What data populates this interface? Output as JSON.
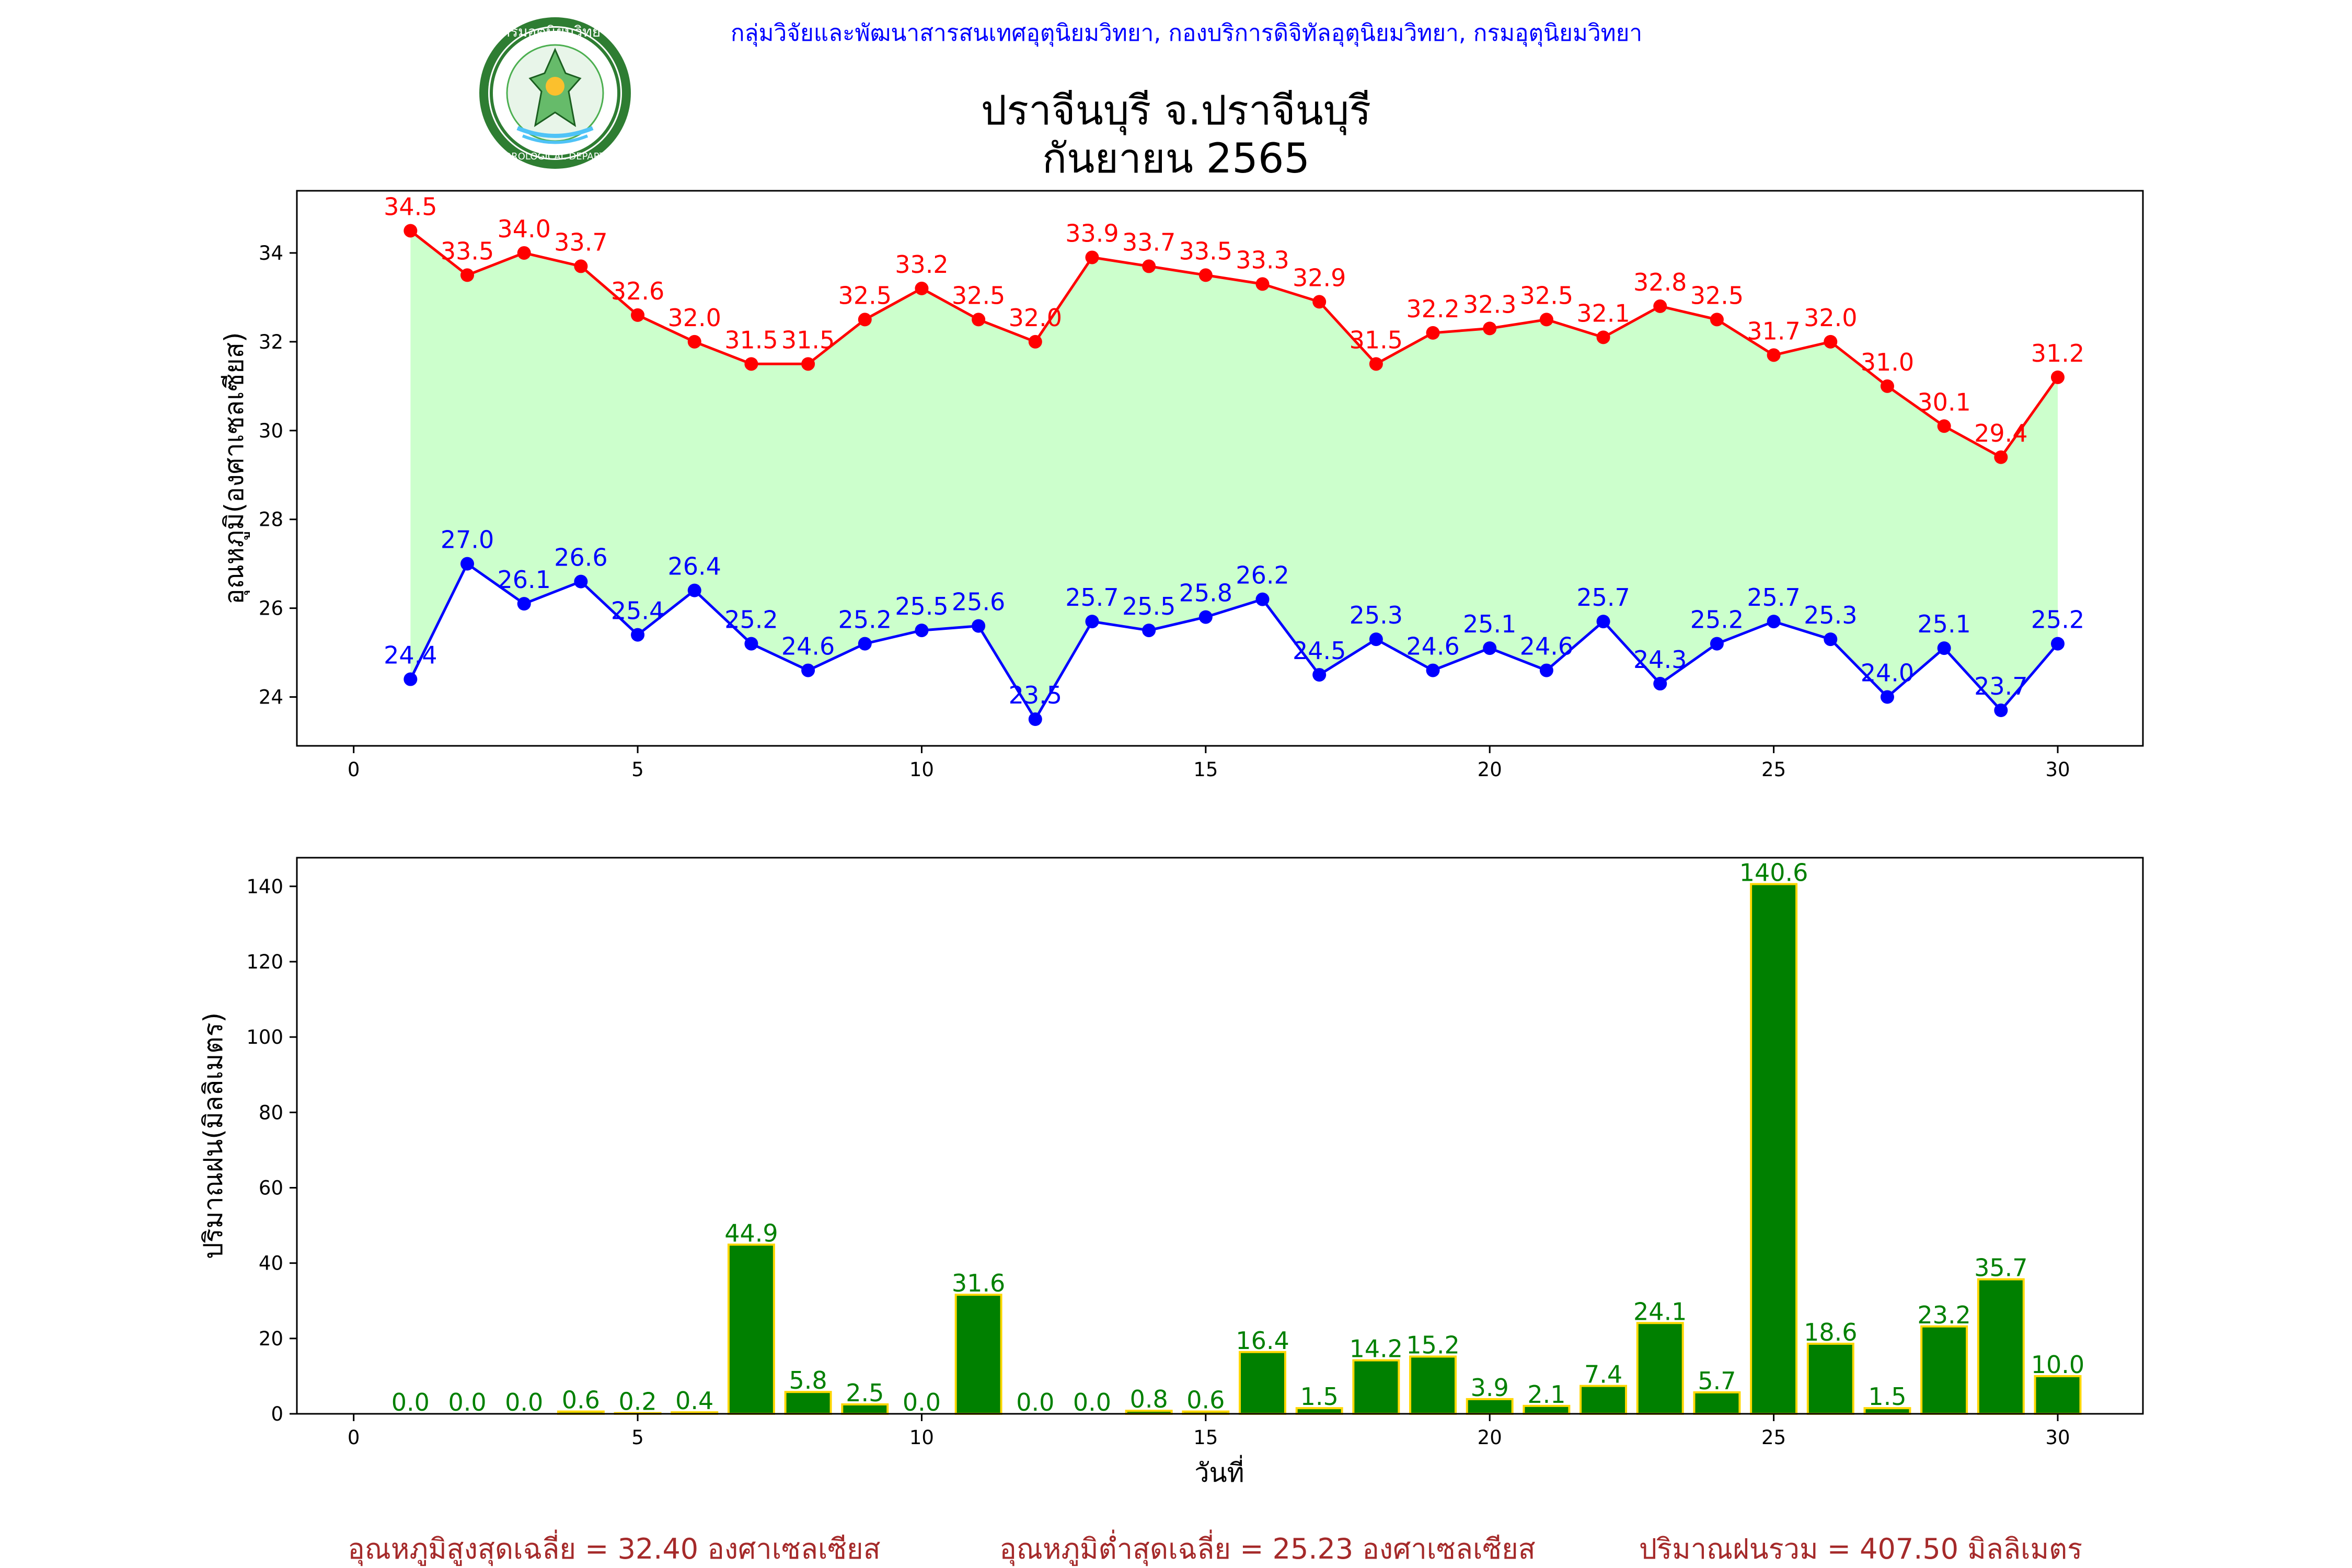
{
  "header": "กลุ่มวิจัยและพัฒนาสารสนเทศอุตุนิยมวิทยา, กองบริการดิจิทัลอุตุนิยมวิทยา, กรมอุตุนิยมวิทยา",
  "title_line1": "ปราจีนบุรี จ.ปราจีนบุรี",
  "title_line2": "กันยายน 2565",
  "logo": {
    "top_text": "กรมอุตุนิยมวิทยา",
    "bottom_text": "METEOROLOGICAL DEPARTMENT"
  },
  "colors": {
    "max": "#ff0000",
    "min": "#0000ff",
    "fill": "#ccffcc",
    "rain_bar": "#008000",
    "rain_edge": "#ffd700",
    "footer": "#a52a2a"
  },
  "chart_data": [
    {
      "type": "line",
      "ylabel": "อุณหภูมิ(องศาเซลเซียส)",
      "xlabel": "",
      "xlim": [
        -1,
        31.5
      ],
      "ylim": [
        22.9,
        35.4
      ],
      "xticks": [
        0,
        5,
        10,
        15,
        20,
        25,
        30
      ],
      "yticks": [
        24,
        26,
        28,
        30,
        32,
        34
      ],
      "fill_between": true,
      "x": [
        1,
        2,
        3,
        4,
        5,
        6,
        7,
        8,
        9,
        10,
        11,
        12,
        13,
        14,
        15,
        16,
        17,
        18,
        19,
        20,
        21,
        22,
        23,
        24,
        25,
        26,
        27,
        28,
        29,
        30
      ],
      "series": [
        {
          "values": [
            34.5,
            33.5,
            34.0,
            33.7,
            32.6,
            32.0,
            31.5,
            31.5,
            32.5,
            33.2,
            32.5,
            32.0,
            33.9,
            33.7,
            33.5,
            33.3,
            32.9,
            31.5,
            32.2,
            32.3,
            32.5,
            32.1,
            32.8,
            32.5,
            31.7,
            32.0,
            31.0,
            30.1,
            29.4,
            31.2
          ]
        },
        {
          "values": [
            24.4,
            27.0,
            26.1,
            26.6,
            25.4,
            26.4,
            25.2,
            24.6,
            25.2,
            25.5,
            25.6,
            23.5,
            25.7,
            25.5,
            25.8,
            26.2,
            24.5,
            25.3,
            24.6,
            25.1,
            24.6,
            25.7,
            24.3,
            25.2,
            25.7,
            25.3,
            24.0,
            25.1,
            23.7,
            25.2
          ]
        }
      ]
    },
    {
      "type": "bar",
      "ylabel": "ปริมาณฝน(มิลลิเมตร)",
      "xlabel": "วันที่",
      "xlim": [
        -1,
        31.5
      ],
      "ylim": [
        0,
        147.6
      ],
      "xticks": [
        0,
        5,
        10,
        15,
        20,
        25,
        30
      ],
      "yticks": [
        0,
        20,
        40,
        60,
        80,
        100,
        120,
        140
      ],
      "x": [
        1,
        2,
        3,
        4,
        5,
        6,
        7,
        8,
        9,
        10,
        11,
        12,
        13,
        14,
        15,
        16,
        17,
        18,
        19,
        20,
        21,
        22,
        23,
        24,
        25,
        26,
        27,
        28,
        29,
        30
      ],
      "values": [
        0.0,
        0.0,
        0.0,
        0.6,
        0.2,
        0.4,
        44.9,
        5.8,
        2.5,
        0.0,
        31.6,
        0.0,
        0.0,
        0.8,
        0.6,
        16.4,
        1.5,
        14.2,
        15.2,
        3.9,
        2.1,
        7.4,
        24.1,
        5.7,
        140.6,
        18.6,
        1.5,
        23.2,
        35.7,
        10.0
      ]
    }
  ],
  "footer": {
    "avg_max": "อุณหภูมิสูงสุดเฉลี่ย = 32.40 องศาเซลเซียส",
    "avg_min": "อุณหภูมิต่ำสุดเฉลี่ย = 25.23 องศาเซลเซียส",
    "total_rain": "ปริมาณฝนรวม = 407.50 มิลลิเมตร"
  }
}
